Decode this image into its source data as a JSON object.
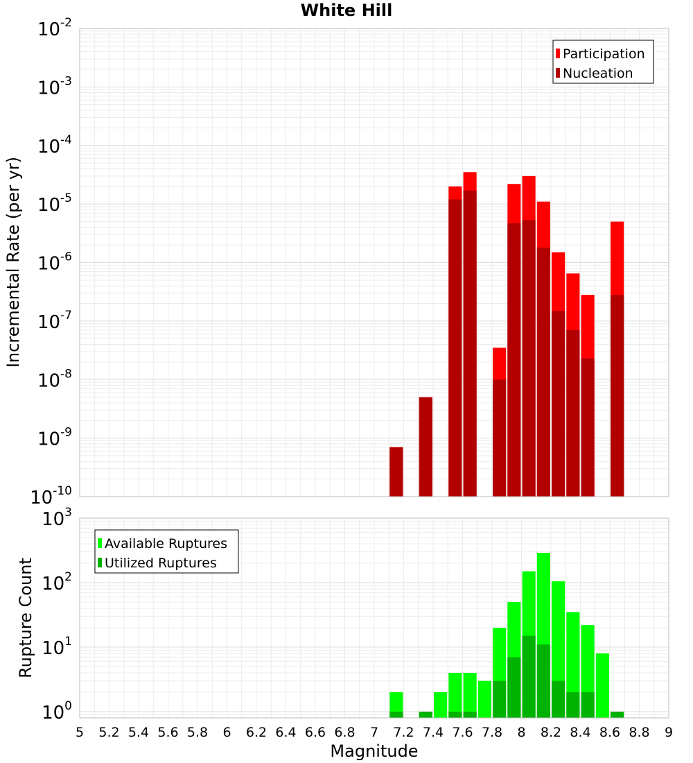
{
  "chart_data": [
    {
      "type": "bar",
      "title": "White Hill",
      "xlabel": "",
      "ylabel": "Incremental Rate (per yr)",
      "yscale": "log",
      "xlim": [
        5,
        9
      ],
      "ylim": [
        1e-10,
        0.01
      ],
      "y_tick_base": "10",
      "y_tick_exponents": [
        "-10",
        "-9",
        "-8",
        "-7",
        "-6",
        "-5",
        "-4",
        "-3",
        "-2"
      ],
      "legend_position": "top-right",
      "grid": true,
      "bar_width": 0.09,
      "series": [
        {
          "name": "Participation",
          "color": "#ff0000",
          "x": [
            7.15,
            7.35,
            7.55,
            7.65,
            7.85,
            7.95,
            8.05,
            8.15,
            8.25,
            8.35,
            8.45,
            8.65
          ],
          "values": [
            7e-10,
            5e-09,
            2e-05,
            3.5e-05,
            3.5e-08,
            2.2e-05,
            3e-05,
            1.1e-05,
            1.5e-06,
            6.5e-07,
            2.8e-07,
            5e-06
          ]
        },
        {
          "name": "Nucleation",
          "color": "#b20000",
          "x": [
            7.15,
            7.35,
            7.55,
            7.65,
            7.85,
            7.95,
            8.05,
            8.15,
            8.25,
            8.35,
            8.45,
            8.65
          ],
          "values": [
            7e-10,
            5e-09,
            1.2e-05,
            1.7e-05,
            1e-08,
            4.7e-06,
            5.3e-06,
            1.8e-06,
            1.5e-07,
            7e-08,
            2.3e-08,
            2.8e-07
          ]
        }
      ]
    },
    {
      "type": "bar",
      "xlabel": "Magnitude",
      "ylabel": "Rupture Count",
      "yscale": "log",
      "xlim": [
        5,
        9
      ],
      "ylim": [
        0.8,
        1000
      ],
      "y_tick_base": "10",
      "y_tick_exponents": [
        "0",
        "1",
        "2",
        "3"
      ],
      "x_ticks": [
        "5",
        "5.2",
        "5.4",
        "5.6",
        "5.8",
        "6",
        "6.2",
        "6.4",
        "6.6",
        "6.8",
        "7",
        "7.2",
        "7.4",
        "7.6",
        "7.8",
        "8",
        "8.2",
        "8.4",
        "8.6",
        "8.8",
        "9"
      ],
      "legend_position": "top-left",
      "grid": true,
      "bar_width": 0.09,
      "series": [
        {
          "name": "Available Ruptures",
          "color": "#00ff00",
          "x": [
            7.15,
            7.35,
            7.45,
            7.55,
            7.65,
            7.75,
            7.85,
            7.95,
            8.05,
            8.15,
            8.25,
            8.35,
            8.45,
            8.55,
            8.65
          ],
          "values": [
            2,
            1,
            2,
            4,
            4,
            3,
            20,
            50,
            150,
            290,
            105,
            35,
            22,
            8,
            1
          ]
        },
        {
          "name": "Utilized Ruptures",
          "color": "#00b200",
          "x": [
            7.15,
            7.35,
            7.45,
            7.55,
            7.65,
            7.75,
            7.85,
            7.95,
            8.05,
            8.15,
            8.25,
            8.35,
            8.45,
            8.55,
            8.65
          ],
          "values": [
            1,
            1,
            0,
            1,
            1,
            0,
            3,
            7,
            15,
            11,
            3,
            2,
            2,
            0,
            1
          ]
        }
      ]
    }
  ]
}
